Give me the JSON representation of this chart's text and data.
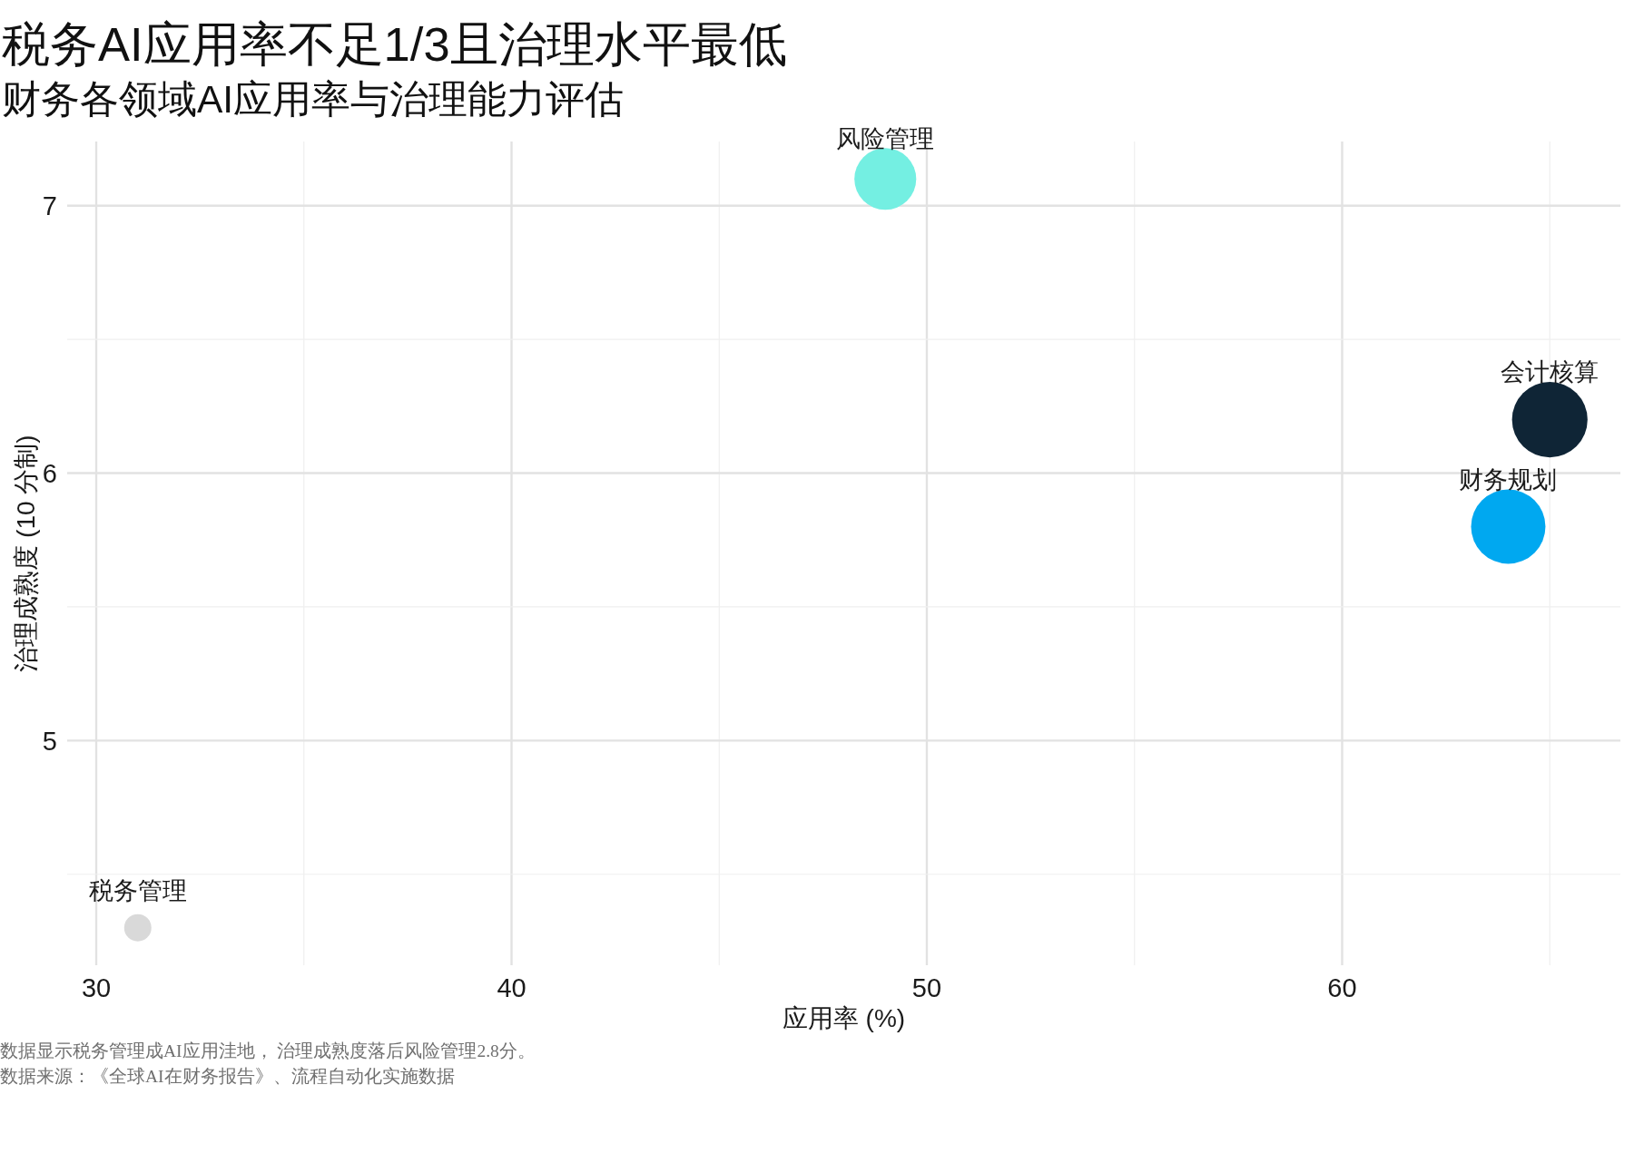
{
  "chart_data": {
    "type": "bubble",
    "title": "税务AI应用率不足1/3且治理水平最低",
    "subtitle": "财务各领域AI应用率与治理能力评估",
    "xlabel": "应用率 (%)",
    "ylabel": "治理成熟度 (10 分制)",
    "annotations": [
      "数据显示税务管理成AI应用洼地， 治理成熟度落后风险管理2.8分。",
      "数据来源：《全球AI在财务报告》、流程自动化实施数据"
    ],
    "series": [
      {
        "name": "风险管理",
        "color": "#74efe2",
        "x": [
          49
        ],
        "values": [
          7.1
        ],
        "sizes": [
          0.67
        ]
      },
      {
        "name": "会计核算",
        "color": "#0f2536",
        "x": [
          65
        ],
        "values": [
          6.2
        ],
        "sizes": [
          1
        ]
      },
      {
        "name": "财务规划",
        "color": "#00a8f0",
        "x": [
          64
        ],
        "values": [
          5.8
        ],
        "sizes": [
          0.97
        ]
      },
      {
        "name": "税务管理",
        "color": "#d9d9d9",
        "x": [
          31
        ],
        "values": [
          4.3
        ],
        "sizes": [
          0.13
        ]
      }
    ],
    "xlim": [
      29.3,
      66.7
    ],
    "ylim": [
      4.16,
      7.24
    ],
    "xticks": [
      30,
      {
        "value": 35,
        "label": null
      },
      40,
      {
        "value": 45,
        "label": null
      },
      50,
      {
        "value": 55,
        "label": null
      },
      60,
      {
        "value": 65,
        "label": null
      }
    ],
    "yticks": [
      {
        "value": 4.5,
        "label": null
      },
      5,
      {
        "value": 5.5,
        "label": null
      },
      6,
      {
        "value": 6.5,
        "label": null
      },
      7
    ],
    "grid": true
  }
}
